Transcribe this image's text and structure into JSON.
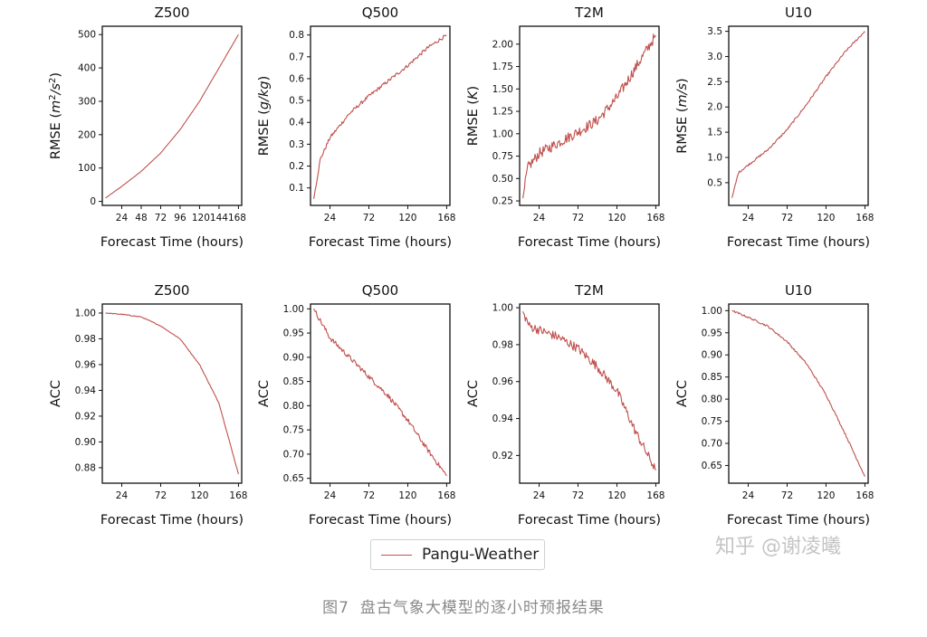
{
  "chart_data": [
    {
      "id": "rmse_z500",
      "type": "line",
      "title": "Z500",
      "xlabel": "Forecast Time (hours)",
      "ylabel": "RMSE (m²/s²)",
      "ylabel_parts": [
        "RMSE (",
        "m",
        "2",
        "/",
        "s",
        "2",
        ")"
      ],
      "ylabel_style": "z500",
      "xlim": [
        0,
        172
      ],
      "ylim": [
        -12,
        525
      ],
      "xticks": [
        24,
        48,
        72,
        96,
        120,
        144,
        168
      ],
      "xtick_labels": [
        "24",
        "48",
        "72",
        "96",
        "120144168",
        ""
      ],
      "xtick_label_mode": "z500",
      "yticks": [
        0,
        100,
        200,
        300,
        400,
        500
      ],
      "ytick_labels": [
        "0",
        "100",
        "200",
        "300",
        "400",
        "500"
      ],
      "series": [
        {
          "name": "Pangu-Weather",
          "x": [
            4,
            24,
            48,
            72,
            96,
            120,
            144,
            168
          ],
          "y": [
            10,
            45,
            90,
            145,
            215,
            300,
            400,
            500
          ]
        }
      ],
      "noise": 0.5
    },
    {
      "id": "rmse_q500",
      "type": "line",
      "title": "Q500",
      "xlabel": "Forecast Time (hours)",
      "ylabel": "RMSE (g/kg)",
      "ylabel_plain": "RMSE (",
      "ylabel_ital": "g/kg",
      "xlim": [
        0,
        172
      ],
      "ylim": [
        0.02,
        0.84
      ],
      "xticks": [
        24,
        72,
        120,
        168
      ],
      "xtick_labels": [
        "24",
        "72",
        "120",
        "168"
      ],
      "yticks": [
        0.1,
        0.2,
        0.3,
        0.4,
        0.5,
        0.6,
        0.7,
        0.8
      ],
      "ytick_labels": [
        "0.1",
        "0.2",
        "0.3",
        "0.4",
        "0.5",
        "0.6",
        "0.7",
        "0.8"
      ],
      "series": [
        {
          "name": "Pangu-Weather",
          "x": [
            4,
            12,
            24,
            48,
            72,
            96,
            120,
            144,
            168
          ],
          "y": [
            0.05,
            0.23,
            0.33,
            0.44,
            0.52,
            0.59,
            0.66,
            0.74,
            0.8
          ]
        }
      ],
      "noise": 0.008
    },
    {
      "id": "rmse_t2m",
      "type": "line",
      "title": "T2M",
      "xlabel": "Forecast Time (hours)",
      "ylabel": "RMSE (K)",
      "ylabel_plain": "RMSE (",
      "ylabel_ital": "K",
      "xlim": [
        0,
        172
      ],
      "ylim": [
        0.2,
        2.2
      ],
      "xticks": [
        24,
        72,
        120,
        168
      ],
      "xtick_labels": [
        "24",
        "72",
        "120",
        "168"
      ],
      "yticks": [
        0.25,
        0.5,
        0.75,
        1.0,
        1.25,
        1.5,
        1.75,
        2.0
      ],
      "ytick_labels": [
        "0.25",
        "0.50",
        "0.75",
        "1.00",
        "1.25",
        "1.50",
        "1.75",
        "2.00"
      ],
      "series": [
        {
          "name": "Pangu-Weather",
          "x": [
            4,
            10,
            24,
            48,
            72,
            96,
            120,
            144,
            168
          ],
          "y": [
            0.28,
            0.62,
            0.78,
            0.9,
            1.02,
            1.15,
            1.4,
            1.75,
            2.1
          ]
        }
      ],
      "noise": 0.06
    },
    {
      "id": "rmse_u10",
      "type": "line",
      "title": "U10",
      "xlabel": "Forecast Time (hours)",
      "ylabel": "RMSE (m/s)",
      "ylabel_plain": "RMSE (",
      "ylabel_ital": "m/s",
      "xlim": [
        0,
        172
      ],
      "ylim": [
        0.05,
        3.6
      ],
      "xticks": [
        24,
        72,
        120,
        168
      ],
      "xtick_labels": [
        "24",
        "72",
        "120",
        "168"
      ],
      "yticks": [
        0.5,
        1.0,
        1.5,
        2.0,
        2.5,
        3.0,
        3.5
      ],
      "ytick_labels": [
        "0.5",
        "1.0",
        "1.5",
        "2.0",
        "2.5",
        "3.0",
        "3.5"
      ],
      "series": [
        {
          "name": "Pangu-Weather",
          "x": [
            4,
            12,
            24,
            48,
            72,
            96,
            120,
            144,
            168
          ],
          "y": [
            0.2,
            0.7,
            0.85,
            1.15,
            1.55,
            2.05,
            2.6,
            3.1,
            3.5
          ]
        }
      ],
      "noise": 0.02
    },
    {
      "id": "acc_z500",
      "type": "line",
      "title": "Z500",
      "xlabel": "Forecast Time (hours)",
      "ylabel": "ACC",
      "xlim": [
        0,
        172
      ],
      "ylim": [
        0.868,
        1.007
      ],
      "xticks": [
        24,
        72,
        120,
        168
      ],
      "xtick_labels": [
        "24",
        "72",
        "120",
        "168"
      ],
      "yticks": [
        0.88,
        0.9,
        0.92,
        0.94,
        0.96,
        0.98,
        1.0
      ],
      "ytick_labels": [
        "0.88",
        "0.90",
        "0.92",
        "0.94",
        "0.96",
        "0.98",
        "1.00"
      ],
      "series": [
        {
          "name": "Pangu-Weather",
          "x": [
            4,
            24,
            48,
            72,
            96,
            120,
            144,
            168
          ],
          "y": [
            1.0,
            0.999,
            0.997,
            0.99,
            0.98,
            0.96,
            0.93,
            0.875
          ]
        }
      ],
      "noise": 0.0003
    },
    {
      "id": "acc_q500",
      "type": "line",
      "title": "Q500",
      "xlabel": "Forecast Time (hours)",
      "ylabel": "ACC",
      "xlim": [
        0,
        172
      ],
      "ylim": [
        0.64,
        1.01
      ],
      "xticks": [
        24,
        72,
        120,
        168
      ],
      "xtick_labels": [
        "24",
        "72",
        "120",
        "168"
      ],
      "yticks": [
        0.65,
        0.7,
        0.75,
        0.8,
        0.85,
        0.9,
        0.95,
        1.0
      ],
      "ytick_labels": [
        "0.65",
        "0.70",
        "0.75",
        "0.80",
        "0.85",
        "0.90",
        "0.95",
        "1.00"
      ],
      "series": [
        {
          "name": "Pangu-Weather",
          "x": [
            4,
            24,
            48,
            72,
            96,
            120,
            144,
            168
          ],
          "y": [
            1.0,
            0.94,
            0.9,
            0.86,
            0.82,
            0.77,
            0.71,
            0.655
          ]
        }
      ],
      "noise": 0.005
    },
    {
      "id": "acc_t2m",
      "type": "line",
      "title": "T2M",
      "xlabel": "Forecast Time (hours)",
      "ylabel": "ACC",
      "xlim": [
        0,
        172
      ],
      "ylim": [
        0.905,
        1.002
      ],
      "xticks": [
        24,
        72,
        120,
        168
      ],
      "xtick_labels": [
        "24",
        "72",
        "120",
        "168"
      ],
      "yticks": [
        0.92,
        0.94,
        0.96,
        0.98,
        1.0
      ],
      "ytick_labels": [
        "0.92",
        "0.94",
        "0.96",
        "0.98",
        "1.00"
      ],
      "series": [
        {
          "name": "Pangu-Weather",
          "x": [
            4,
            12,
            24,
            48,
            72,
            96,
            120,
            144,
            168
          ],
          "y": [
            0.998,
            0.99,
            0.988,
            0.984,
            0.978,
            0.968,
            0.955,
            0.932,
            0.912
          ]
        }
      ],
      "noise": 0.0025
    },
    {
      "id": "acc_u10",
      "type": "line",
      "title": "U10",
      "xlabel": "Forecast Time (hours)",
      "ylabel": "ACC",
      "xlim": [
        0,
        172
      ],
      "ylim": [
        0.61,
        1.015
      ],
      "xticks": [
        24,
        72,
        120,
        168
      ],
      "xtick_labels": [
        "24",
        "72",
        "120",
        "168"
      ],
      "yticks": [
        0.65,
        0.7,
        0.75,
        0.8,
        0.85,
        0.9,
        0.95,
        1.0
      ],
      "ytick_labels": [
        "0.65",
        "0.70",
        "0.75",
        "0.80",
        "0.85",
        "0.90",
        "0.95",
        "1.00"
      ],
      "series": [
        {
          "name": "Pangu-Weather",
          "x": [
            4,
            24,
            48,
            72,
            96,
            120,
            144,
            168
          ],
          "y": [
            1.0,
            0.985,
            0.965,
            0.93,
            0.88,
            0.81,
            0.72,
            0.625
          ]
        }
      ],
      "noise": 0.002
    }
  ],
  "legend": {
    "label": "Pangu-Weather",
    "color": "#c0504d"
  },
  "caption": {
    "figure": "图7",
    "text": "盘古气象大模型的逐小时预报结果"
  },
  "watermark": "知乎 @谢凌曦"
}
